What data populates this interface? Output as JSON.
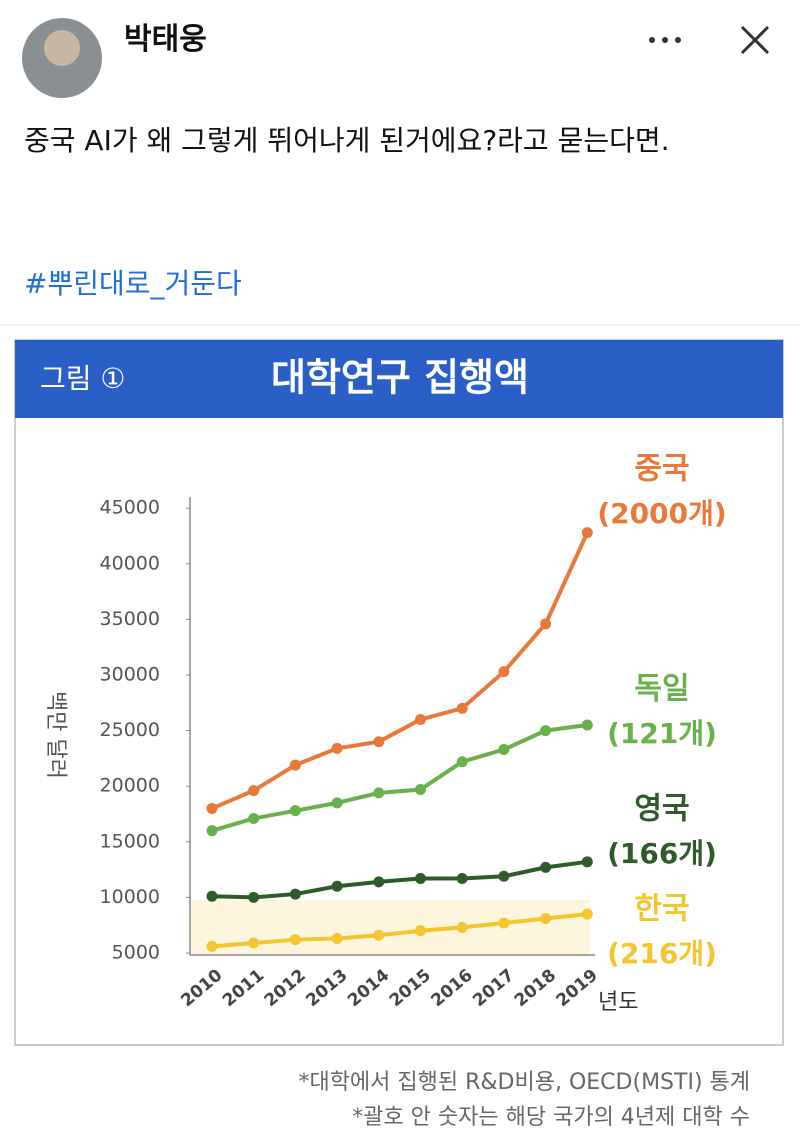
{
  "post": {
    "author": "박태웅",
    "text": "중국 AI가 왜 그렇게 뛰어나게 된거에요?라고 묻는다면.",
    "hashtag": "#뿌린대로_거둔다"
  },
  "chart_data": {
    "type": "line",
    "figure_label": "그림 ①",
    "title": "대학연구 집행액",
    "y_label": "백만 달러",
    "x_label": "년도",
    "categories": [
      "2010",
      "2011",
      "2012",
      "2013",
      "2014",
      "2015",
      "2016",
      "2017",
      "2018",
      "2019"
    ],
    "series": [
      {
        "name": "중국",
        "note": "(2000개)",
        "color": "#e8793a",
        "values": [
          18000,
          19600,
          21900,
          23400,
          24000,
          26000,
          27000,
          30300,
          34600,
          42800
        ]
      },
      {
        "name": "독일",
        "note": "(121개)",
        "color": "#6ab04c",
        "values": [
          16000,
          17100,
          17800,
          18500,
          19400,
          19700,
          22200,
          23300,
          25000,
          25500
        ]
      },
      {
        "name": "영국",
        "note": "(166개)",
        "color": "#2f5a2a",
        "values": [
          10100,
          10000,
          10300,
          11000,
          11400,
          11700,
          11700,
          11900,
          12700,
          13200
        ]
      },
      {
        "name": "한국",
        "note": "(216개)",
        "color": "#f2c531",
        "values": [
          5600,
          5900,
          6200,
          6300,
          6600,
          7000,
          7300,
          7700,
          8100,
          8500
        ]
      }
    ],
    "ylim": [
      5000,
      46000
    ],
    "yticks": [
      5000,
      10000,
      15000,
      20000,
      25000,
      30000,
      35000,
      40000,
      45000
    ],
    "footnotes": [
      "*대학에서 집행된 R&D비용, OECD(MSTI) 통계",
      "*괄호 안 숫자는 해당 국가의 4년제 대학 수"
    ]
  }
}
